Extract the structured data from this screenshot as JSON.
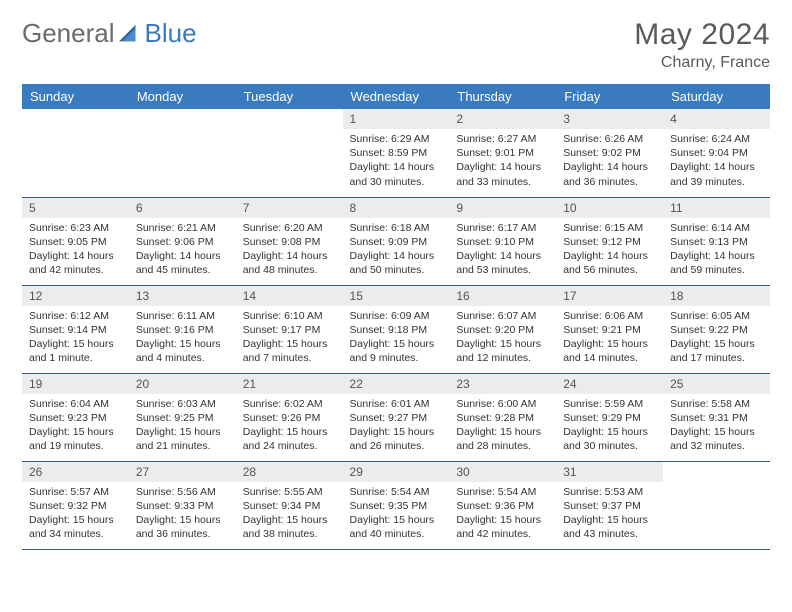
{
  "logo": {
    "text1": "General",
    "text2": "Blue"
  },
  "title": "May 2024",
  "location": "Charny, France",
  "colors": {
    "header_bg": "#3a7abf",
    "header_text": "#ffffff",
    "daynum_bg": "#ececec",
    "row_border": "#2f5c8c",
    "page_bg": "#ffffff",
    "title_color": "#5a5a5a"
  },
  "weekdays": [
    "Sunday",
    "Monday",
    "Tuesday",
    "Wednesday",
    "Thursday",
    "Friday",
    "Saturday"
  ],
  "first_weekday_index": 3,
  "days": [
    {
      "n": 1,
      "sr": "6:29 AM",
      "ss": "8:59 PM",
      "dl": "14 hours and 30 minutes."
    },
    {
      "n": 2,
      "sr": "6:27 AM",
      "ss": "9:01 PM",
      "dl": "14 hours and 33 minutes."
    },
    {
      "n": 3,
      "sr": "6:26 AM",
      "ss": "9:02 PM",
      "dl": "14 hours and 36 minutes."
    },
    {
      "n": 4,
      "sr": "6:24 AM",
      "ss": "9:04 PM",
      "dl": "14 hours and 39 minutes."
    },
    {
      "n": 5,
      "sr": "6:23 AM",
      "ss": "9:05 PM",
      "dl": "14 hours and 42 minutes."
    },
    {
      "n": 6,
      "sr": "6:21 AM",
      "ss": "9:06 PM",
      "dl": "14 hours and 45 minutes."
    },
    {
      "n": 7,
      "sr": "6:20 AM",
      "ss": "9:08 PM",
      "dl": "14 hours and 48 minutes."
    },
    {
      "n": 8,
      "sr": "6:18 AM",
      "ss": "9:09 PM",
      "dl": "14 hours and 50 minutes."
    },
    {
      "n": 9,
      "sr": "6:17 AM",
      "ss": "9:10 PM",
      "dl": "14 hours and 53 minutes."
    },
    {
      "n": 10,
      "sr": "6:15 AM",
      "ss": "9:12 PM",
      "dl": "14 hours and 56 minutes."
    },
    {
      "n": 11,
      "sr": "6:14 AM",
      "ss": "9:13 PM",
      "dl": "14 hours and 59 minutes."
    },
    {
      "n": 12,
      "sr": "6:12 AM",
      "ss": "9:14 PM",
      "dl": "15 hours and 1 minute."
    },
    {
      "n": 13,
      "sr": "6:11 AM",
      "ss": "9:16 PM",
      "dl": "15 hours and 4 minutes."
    },
    {
      "n": 14,
      "sr": "6:10 AM",
      "ss": "9:17 PM",
      "dl": "15 hours and 7 minutes."
    },
    {
      "n": 15,
      "sr": "6:09 AM",
      "ss": "9:18 PM",
      "dl": "15 hours and 9 minutes."
    },
    {
      "n": 16,
      "sr": "6:07 AM",
      "ss": "9:20 PM",
      "dl": "15 hours and 12 minutes."
    },
    {
      "n": 17,
      "sr": "6:06 AM",
      "ss": "9:21 PM",
      "dl": "15 hours and 14 minutes."
    },
    {
      "n": 18,
      "sr": "6:05 AM",
      "ss": "9:22 PM",
      "dl": "15 hours and 17 minutes."
    },
    {
      "n": 19,
      "sr": "6:04 AM",
      "ss": "9:23 PM",
      "dl": "15 hours and 19 minutes."
    },
    {
      "n": 20,
      "sr": "6:03 AM",
      "ss": "9:25 PM",
      "dl": "15 hours and 21 minutes."
    },
    {
      "n": 21,
      "sr": "6:02 AM",
      "ss": "9:26 PM",
      "dl": "15 hours and 24 minutes."
    },
    {
      "n": 22,
      "sr": "6:01 AM",
      "ss": "9:27 PM",
      "dl": "15 hours and 26 minutes."
    },
    {
      "n": 23,
      "sr": "6:00 AM",
      "ss": "9:28 PM",
      "dl": "15 hours and 28 minutes."
    },
    {
      "n": 24,
      "sr": "5:59 AM",
      "ss": "9:29 PM",
      "dl": "15 hours and 30 minutes."
    },
    {
      "n": 25,
      "sr": "5:58 AM",
      "ss": "9:31 PM",
      "dl": "15 hours and 32 minutes."
    },
    {
      "n": 26,
      "sr": "5:57 AM",
      "ss": "9:32 PM",
      "dl": "15 hours and 34 minutes."
    },
    {
      "n": 27,
      "sr": "5:56 AM",
      "ss": "9:33 PM",
      "dl": "15 hours and 36 minutes."
    },
    {
      "n": 28,
      "sr": "5:55 AM",
      "ss": "9:34 PM",
      "dl": "15 hours and 38 minutes."
    },
    {
      "n": 29,
      "sr": "5:54 AM",
      "ss": "9:35 PM",
      "dl": "15 hours and 40 minutes."
    },
    {
      "n": 30,
      "sr": "5:54 AM",
      "ss": "9:36 PM",
      "dl": "15 hours and 42 minutes."
    },
    {
      "n": 31,
      "sr": "5:53 AM",
      "ss": "9:37 PM",
      "dl": "15 hours and 43 minutes."
    }
  ],
  "labels": {
    "sunrise": "Sunrise:",
    "sunset": "Sunset:",
    "daylight": "Daylight:"
  }
}
